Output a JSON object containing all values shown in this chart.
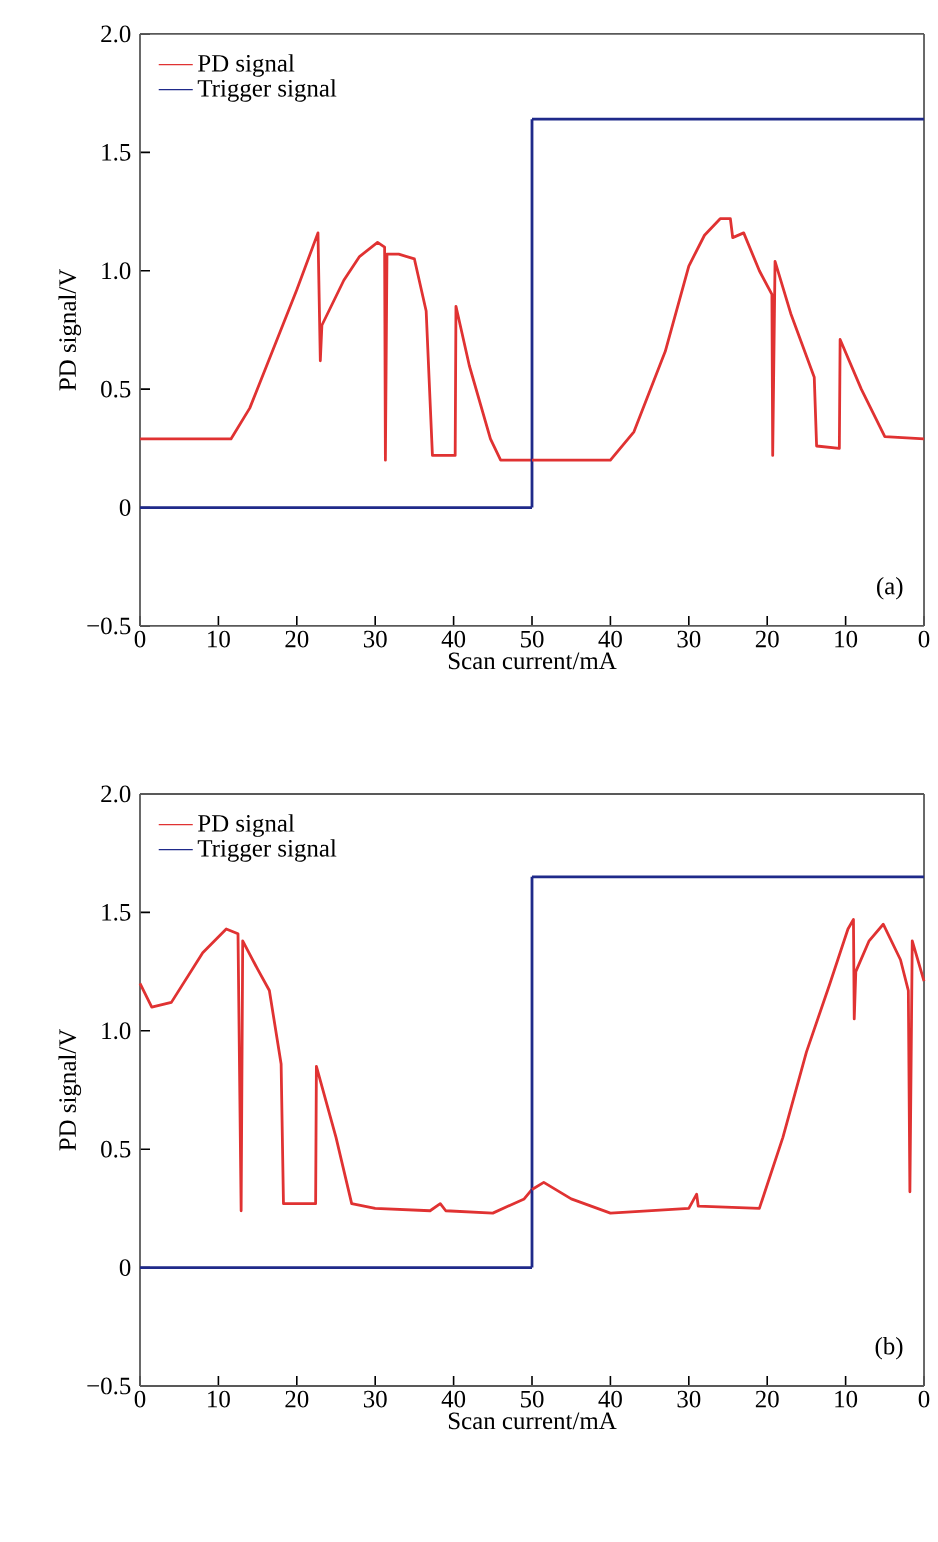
{
  "chart_data": [
    {
      "type": "line",
      "xlabel": "Scan current/mA",
      "ylabel": "PD signal/V",
      "legend": "top left",
      "xlim": [
        0,
        50
      ],
      "xticks": [
        0,
        10,
        20,
        30,
        40,
        50
      ],
      "ylim": [
        -0.5,
        2.0
      ],
      "yticks": [
        {
          "value": -0.5,
          "label": "−0.5"
        },
        0,
        0.5,
        {
          "value": 1,
          "label": "1.0"
        },
        1.5,
        {
          "value": 2,
          "label": "2.0"
        }
      ],
      "series": [
        {
          "name": "PD signal",
          "color": "#e03232",
          "x": [
            0,
            11.6,
            14,
            17,
            20,
            22.7,
            23,
            23.2,
            26,
            28,
            30.3,
            31.2,
            31.3,
            31.5,
            33,
            35,
            36.5,
            37.3,
            40.2,
            40.3,
            42,
            44.7,
            46,
            50
          ],
          "values": [
            0.29,
            0.29,
            0.42,
            0.67,
            0.92,
            1.16,
            0.62,
            0.77,
            0.96,
            1.06,
            1.12,
            1.1,
            0.2,
            1.07,
            1.07,
            1.05,
            0.83,
            0.22,
            0.22,
            0.85,
            0.6,
            0.29,
            0.2,
            0.2
          ]
        },
        {
          "name": "Trigger signal",
          "color": "#1f2a8a",
          "x": [
            0,
            50
          ],
          "values": [
            0,
            0
          ]
        },
        {
          "color": "#1f2a8a",
          "x": [
            50,
            50
          ],
          "values": [
            0,
            1.64
          ]
        }
      ]
    },
    {
      "type": "line",
      "annotations": [
        "(a)"
      ],
      "tick_labels": "x",
      "xlim": [
        50,
        0
      ],
      "xticks": [
        40,
        30,
        20,
        10,
        0
      ],
      "ylim": [
        -0.5,
        2.0
      ],
      "series": [
        {
          "color": "#e03232",
          "x": [
            50,
            45,
            40,
            37,
            33,
            30,
            28,
            26,
            24.7,
            24.4,
            23,
            21,
            19.4,
            19.3,
            19,
            17,
            14,
            13.7,
            10.8,
            10.7,
            8,
            5,
            0
          ],
          "values": [
            0.2,
            0.2,
            0.2,
            0.32,
            0.66,
            1.02,
            1.15,
            1.22,
            1.22,
            1.14,
            1.16,
            1.0,
            0.9,
            0.22,
            1.04,
            0.82,
            0.55,
            0.26,
            0.25,
            0.71,
            0.5,
            0.3,
            0.29
          ]
        },
        {
          "color": "#1f2a8a",
          "x": [
            50,
            0
          ],
          "values": [
            1.64,
            1.64
          ]
        }
      ]
    },
    {
      "type": "line",
      "xlabel": "Scan current/mA",
      "ylabel": "PD signal/V",
      "legend": "top left",
      "xlim": [
        0,
        50
      ],
      "xticks": [
        0,
        10,
        20,
        30,
        40,
        50
      ],
      "ylim": [
        -0.5,
        2.0
      ],
      "yticks": [
        {
          "value": -0.5,
          "label": "−0.5"
        },
        0,
        0.5,
        {
          "value": 1,
          "label": "1.0"
        },
        1.5,
        {
          "value": 2,
          "label": "2.0"
        }
      ],
      "series": [
        {
          "name": "PD signal",
          "color": "#e03232",
          "x": [
            0,
            1.5,
            4,
            8,
            11,
            12.5,
            12.9,
            13.1,
            15,
            16.5,
            18,
            18.3,
            22.4,
            22.5,
            25,
            27,
            30,
            37,
            38.3,
            39,
            45,
            49,
            50
          ],
          "values": [
            1.2,
            1.1,
            1.12,
            1.33,
            1.43,
            1.41,
            0.24,
            1.38,
            1.26,
            1.17,
            0.86,
            0.27,
            0.27,
            0.85,
            0.55,
            0.27,
            0.25,
            0.24,
            0.27,
            0.24,
            0.23,
            0.29,
            0.33
          ]
        },
        {
          "name": "Trigger signal",
          "color": "#1f2a8a",
          "x": [
            0,
            50
          ],
          "values": [
            0,
            0
          ]
        },
        {
          "color": "#1f2a8a",
          "x": [
            50,
            50
          ],
          "values": [
            0,
            1.65
          ]
        }
      ]
    },
    {
      "type": "line",
      "annotations": [
        "(b)"
      ],
      "tick_labels": "x",
      "xlim": [
        50,
        0
      ],
      "xticks": [
        40,
        30,
        20,
        10,
        0
      ],
      "ylim": [
        -0.5,
        2.0
      ],
      "series": [
        {
          "color": "#e03232",
          "x": [
            50,
            48.5,
            45,
            40,
            30,
            29,
            28.8,
            21,
            18,
            15,
            12,
            9.7,
            9,
            8.9,
            8.7,
            7,
            5.2,
            3,
            2,
            1.8,
            1.5,
            0
          ],
          "values": [
            0.33,
            0.36,
            0.29,
            0.23,
            0.25,
            0.31,
            0.26,
            0.25,
            0.55,
            0.91,
            1.2,
            1.43,
            1.47,
            1.05,
            1.25,
            1.38,
            1.45,
            1.3,
            1.17,
            0.32,
            1.38,
            1.21
          ]
        },
        {
          "color": "#1f2a8a",
          "x": [
            50,
            0
          ],
          "values": [
            1.65,
            1.65
          ]
        }
      ]
    }
  ]
}
